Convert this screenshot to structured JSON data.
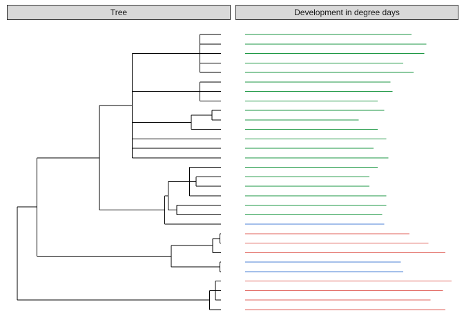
{
  "panels": {
    "left_title": "Tree",
    "right_title": "Development in degree days"
  },
  "chart_data": {
    "type": "bar",
    "orientation": "horizontal",
    "leaf_count": 30,
    "axes_shown": false,
    "grid": false,
    "legend": "none",
    "group_colors": {
      "green": "#1a9641",
      "blue": "#4a7fd6",
      "red": "#e0615a"
    },
    "dendrogram": {
      "leaf": [
        0,
        1,
        2,
        3,
        4,
        5,
        6,
        7,
        8,
        9,
        10,
        11,
        12,
        13,
        14,
        15,
        16,
        17,
        18,
        19,
        20,
        21,
        22,
        23,
        24,
        25,
        26,
        27,
        28,
        29
      ],
      "internal": [
        {
          "id": "A1",
          "height": 33.2,
          "children": [
            0,
            1,
            2,
            3,
            4
          ]
        },
        {
          "id": "A2",
          "height": 33.2,
          "children": [
            5,
            6,
            7
          ]
        },
        {
          "id": "A3a",
          "height": 35.4,
          "children": [
            8,
            9
          ]
        },
        {
          "id": "A3",
          "height": 31.6,
          "children": [
            "A3a",
            10
          ]
        },
        {
          "id": "A",
          "height": 20.9,
          "children": [
            "A1",
            "A2",
            "A3",
            11,
            12,
            13
          ]
        },
        {
          "id": "B1a",
          "height": 32.5,
          "children": [
            15,
            16
          ]
        },
        {
          "id": "B1",
          "height": 31.3,
          "children": [
            14,
            "B1a",
            17
          ]
        },
        {
          "id": "B2",
          "height": 29.0,
          "children": [
            18,
            19
          ]
        },
        {
          "id": "B12",
          "height": 27.4,
          "children": [
            "B1",
            "B2"
          ]
        },
        {
          "id": "B",
          "height": 26.8,
          "children": [
            "B12",
            20
          ]
        },
        {
          "id": "AB",
          "height": 14.9,
          "children": [
            "A",
            "B"
          ]
        },
        {
          "id": "C1",
          "height": 36.8,
          "children": [
            21,
            22
          ]
        },
        {
          "id": "C1b",
          "height": 35.5,
          "children": [
            "C1",
            23
          ]
        },
        {
          "id": "C2",
          "height": 36.8,
          "children": [
            24,
            25
          ]
        },
        {
          "id": "C",
          "height": 28.0,
          "children": [
            "C1b",
            "C2"
          ]
        },
        {
          "id": "ABC",
          "height": 3.6,
          "children": [
            "AB",
            "C"
          ]
        },
        {
          "id": "D1",
          "height": 36.0,
          "children": [
            26,
            27,
            28
          ]
        },
        {
          "id": "D",
          "height": 34.9,
          "children": [
            "D1",
            29
          ]
        },
        {
          "id": "ABCD",
          "height": 1.6,
          "children": [
            "D"
          ]
        },
        {
          "id": "ROOT",
          "height": 0.0,
          "children": [
            "ABC",
            "D"
          ]
        }
      ]
    },
    "series": [
      {
        "values": [
          0.79,
          0.86,
          0.85,
          0.75,
          0.8,
          0.69,
          0.7,
          0.63,
          0.66,
          0.54,
          0.63,
          0.67,
          0.61,
          0.68,
          0.63,
          0.59,
          0.59,
          0.67,
          0.67,
          0.65,
          0.66,
          0.78,
          0.87,
          0.95,
          0.74,
          0.75,
          0.98,
          0.94,
          0.88,
          0.95
        ],
        "colors": [
          "green",
          "green",
          "green",
          "green",
          "green",
          "green",
          "green",
          "green",
          "green",
          "green",
          "green",
          "green",
          "green",
          "green",
          "green",
          "green",
          "green",
          "green",
          "green",
          "green",
          "blue",
          "red",
          "red",
          "red",
          "blue",
          "blue",
          "red",
          "red",
          "red",
          "red"
        ]
      }
    ]
  }
}
